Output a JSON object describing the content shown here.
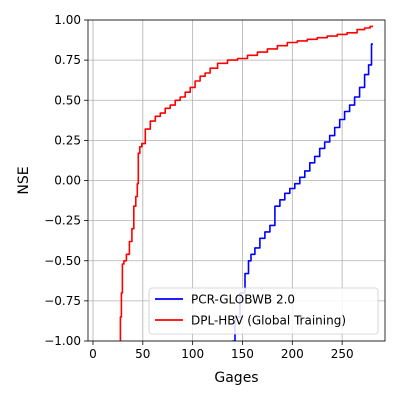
{
  "chart_data": {
    "type": "line",
    "title": "",
    "xlabel": "Gages",
    "ylabel": "NSE",
    "xlim": [
      -5,
      293
    ],
    "ylim": [
      -1.0,
      1.0
    ],
    "xticks": [
      0,
      50,
      100,
      150,
      200,
      250
    ],
    "yticks": [
      -1.0,
      -0.75,
      -0.5,
      -0.25,
      0.0,
      0.25,
      0.5,
      0.75,
      1.0
    ],
    "xtick_labels": [
      "0",
      "50",
      "100",
      "150",
      "200",
      "250"
    ],
    "ytick_labels": [
      "−1.00",
      "−0.75",
      "−0.50",
      "−0.25",
      "0.00",
      "0.25",
      "0.50",
      "0.75",
      "1.00"
    ],
    "grid": true,
    "legend_position": "lower-right",
    "series": [
      {
        "name": "PCR-GLOBWB 2.0",
        "color": "#0000ff",
        "x": [
          140,
          145,
          150,
          155,
          157,
          160,
          165,
          170,
          175,
          180,
          185,
          190,
          195,
          200,
          205,
          210,
          215,
          220,
          225,
          230,
          235,
          240,
          245,
          250,
          255,
          260,
          265,
          270,
          275,
          278,
          281
        ],
        "y": [
          -1.0,
          -0.85,
          -0.7,
          -0.58,
          -0.5,
          -0.46,
          -0.42,
          -0.36,
          -0.32,
          -0.28,
          -0.16,
          -0.12,
          -0.08,
          -0.05,
          -0.02,
          0.02,
          0.06,
          0.11,
          0.15,
          0.2,
          0.24,
          0.28,
          0.33,
          0.38,
          0.43,
          0.47,
          0.52,
          0.58,
          0.66,
          0.72,
          0.85
        ]
      },
      {
        "name": "DPL-HBV (Global Training)",
        "color": "#ff0000",
        "x": [
          27,
          28,
          29,
          30,
          32,
          35,
          38,
          40,
          42,
          44,
          45,
          46,
          48,
          50,
          55,
          60,
          65,
          70,
          75,
          80,
          85,
          90,
          95,
          100,
          105,
          110,
          115,
          120,
          130,
          140,
          150,
          160,
          170,
          180,
          190,
          200,
          210,
          220,
          230,
          240,
          250,
          260,
          270,
          275,
          281
        ],
        "y": [
          -1.0,
          -0.85,
          -0.7,
          -0.52,
          -0.5,
          -0.46,
          -0.38,
          -0.3,
          -0.16,
          -0.1,
          -0.02,
          0.17,
          0.21,
          0.23,
          0.32,
          0.37,
          0.4,
          0.42,
          0.45,
          0.47,
          0.5,
          0.52,
          0.55,
          0.58,
          0.62,
          0.65,
          0.67,
          0.7,
          0.73,
          0.75,
          0.76,
          0.78,
          0.8,
          0.82,
          0.84,
          0.86,
          0.87,
          0.88,
          0.89,
          0.9,
          0.91,
          0.92,
          0.94,
          0.95,
          0.96
        ]
      }
    ]
  }
}
